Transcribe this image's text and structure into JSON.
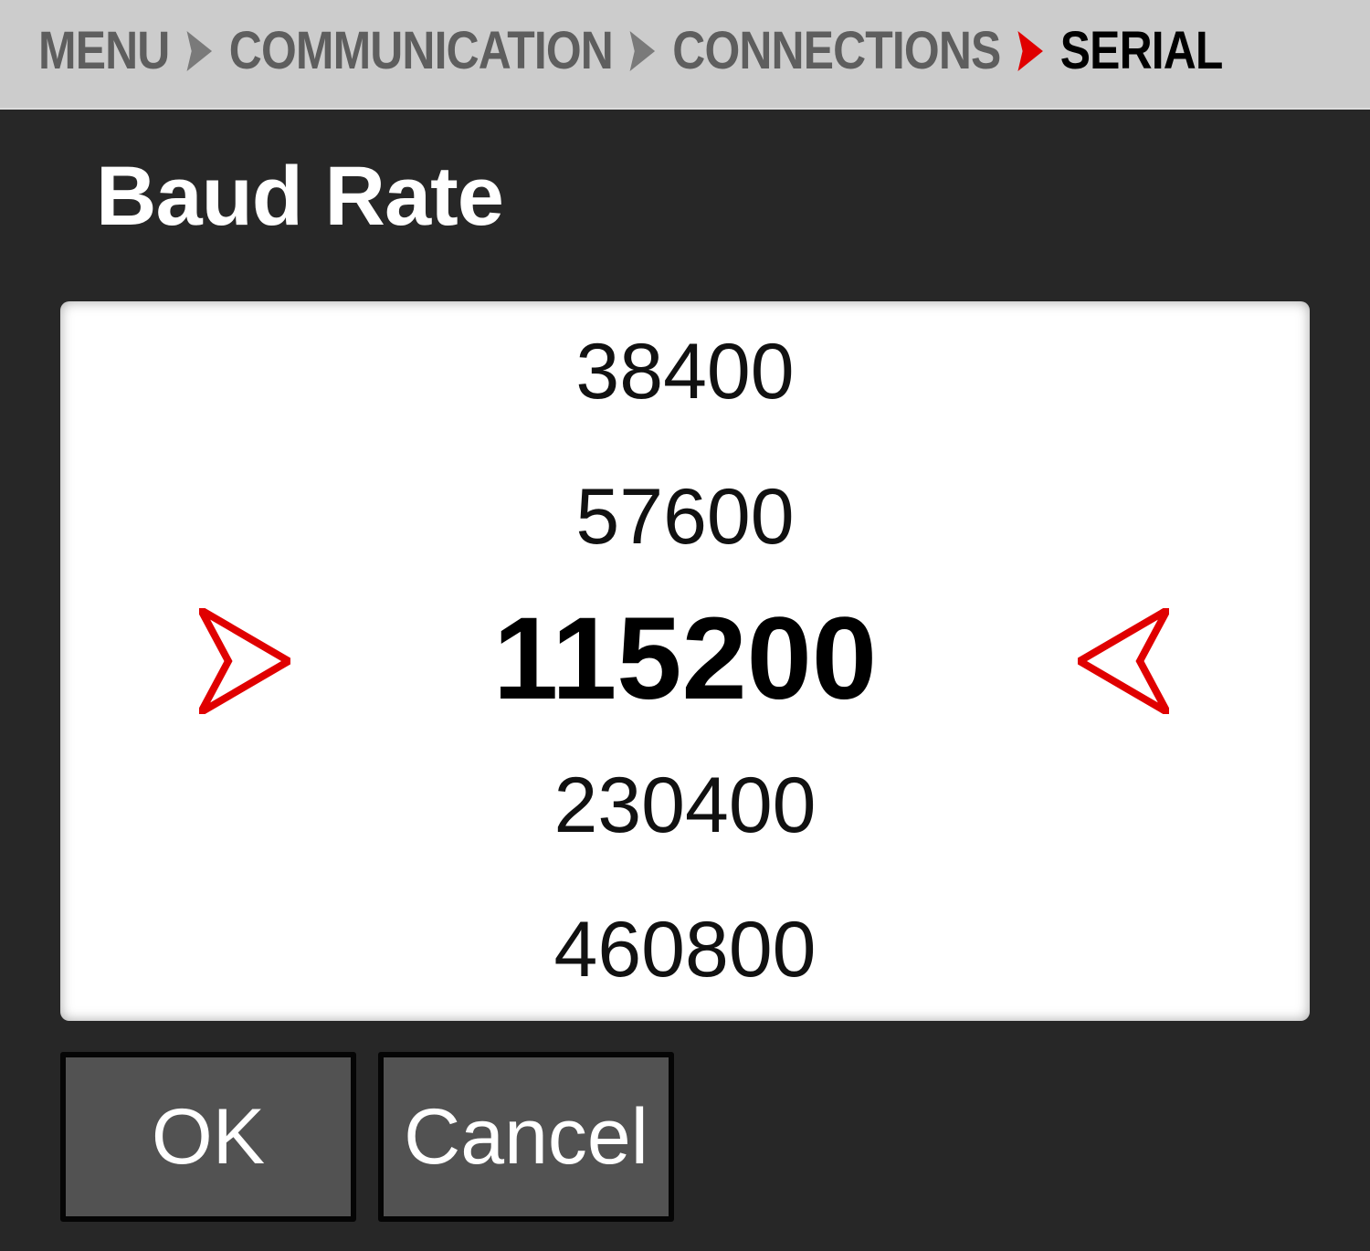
{
  "breadcrumb": {
    "items": [
      "MENU",
      "COMMUNICATION",
      "CONNECTIONS",
      "SERIAL"
    ],
    "separator_icon": "chevron-right-icon",
    "separator_color": "#7a7a7a",
    "current_separator_color": "#e00000"
  },
  "dialog": {
    "title": "Baud Rate",
    "options": [
      "38400",
      "57600",
      "115200",
      "230400",
      "460800"
    ],
    "selected": "115200",
    "selector_icon_color": "#e00000"
  },
  "buttons": {
    "ok": "OK",
    "cancel": "Cancel"
  }
}
